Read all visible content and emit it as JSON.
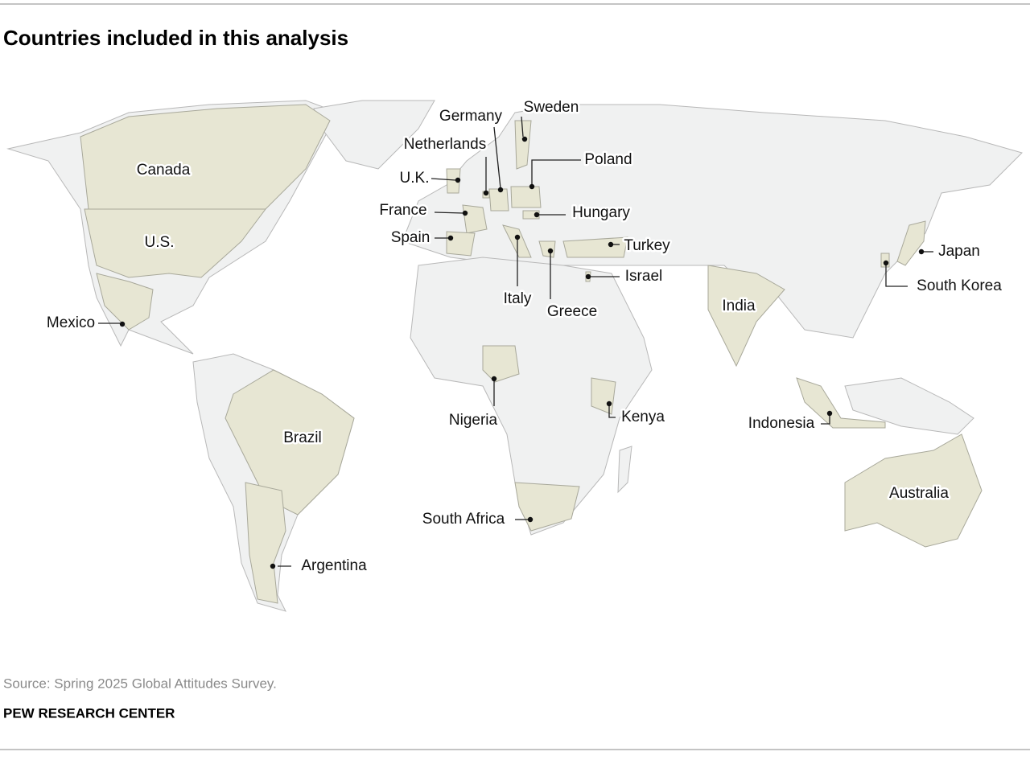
{
  "title": "Countries included in this analysis",
  "map": {
    "labels": [
      "Canada",
      "U.S.",
      "Mexico",
      "Brazil",
      "Argentina",
      "U.K.",
      "Netherlands",
      "Germany",
      "Sweden",
      "Poland",
      "France",
      "Hungary",
      "Spain",
      "Turkey",
      "Italy",
      "Greece",
      "Israel",
      "Japan",
      "South Korea",
      "India",
      "Nigeria",
      "Kenya",
      "Indonesia",
      "Australia",
      "South Africa"
    ]
  },
  "source": "Source: Spring 2025 Global Attitudes Survey.",
  "footer": "PEW RESEARCH CENTER"
}
